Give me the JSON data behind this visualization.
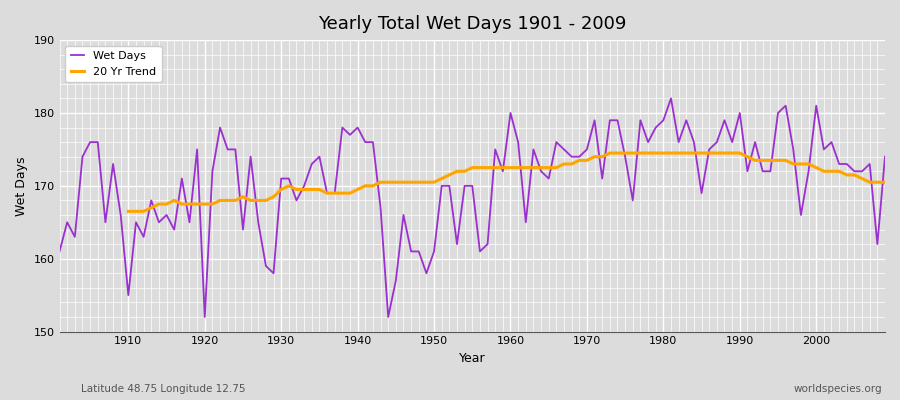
{
  "title": "Yearly Total Wet Days 1901 - 2009",
  "xlabel": "Year",
  "ylabel": "Wet Days",
  "subtitle_left": "Latitude 48.75 Longitude 12.75",
  "subtitle_right": "worldspecies.org",
  "ylim": [
    150,
    190
  ],
  "yticks": [
    150,
    160,
    170,
    180,
    190
  ],
  "xlim": [
    1901,
    2009
  ],
  "wet_days_color": "#9b30d0",
  "trend_color": "#ffa500",
  "bg_color": "#dcdcdc",
  "plot_bg_color": "#dcdcdc",
  "legend_wet": "Wet Days",
  "legend_trend": "20 Yr Trend",
  "years": [
    1901,
    1902,
    1903,
    1904,
    1905,
    1906,
    1907,
    1908,
    1909,
    1910,
    1911,
    1912,
    1913,
    1914,
    1915,
    1916,
    1917,
    1918,
    1919,
    1920,
    1921,
    1922,
    1923,
    1924,
    1925,
    1926,
    1927,
    1928,
    1929,
    1930,
    1931,
    1932,
    1933,
    1934,
    1935,
    1936,
    1937,
    1938,
    1939,
    1940,
    1941,
    1942,
    1943,
    1944,
    1945,
    1946,
    1947,
    1948,
    1949,
    1950,
    1951,
    1952,
    1953,
    1954,
    1955,
    1956,
    1957,
    1958,
    1959,
    1960,
    1961,
    1962,
    1963,
    1964,
    1965,
    1966,
    1967,
    1968,
    1969,
    1970,
    1971,
    1972,
    1973,
    1974,
    1975,
    1976,
    1977,
    1978,
    1979,
    1980,
    1981,
    1982,
    1983,
    1984,
    1985,
    1986,
    1987,
    1988,
    1989,
    1990,
    1991,
    1992,
    1993,
    1994,
    1995,
    1996,
    1997,
    1998,
    1999,
    2000,
    2001,
    2002,
    2003,
    2004,
    2005,
    2006,
    2007,
    2008,
    2009
  ],
  "wet_days": [
    161,
    165,
    163,
    174,
    176,
    176,
    165,
    173,
    166,
    155,
    165,
    163,
    168,
    165,
    166,
    164,
    171,
    165,
    175,
    152,
    172,
    178,
    175,
    175,
    164,
    174,
    165,
    159,
    158,
    171,
    171,
    168,
    170,
    173,
    174,
    169,
    169,
    178,
    177,
    178,
    176,
    176,
    167,
    152,
    157,
    166,
    161,
    161,
    158,
    161,
    170,
    170,
    162,
    170,
    170,
    161,
    162,
    175,
    172,
    180,
    176,
    165,
    175,
    172,
    171,
    176,
    175,
    174,
    174,
    175,
    179,
    171,
    179,
    179,
    174,
    168,
    179,
    176,
    178,
    179,
    182,
    176,
    179,
    176,
    169,
    175,
    176,
    179,
    176,
    180,
    172,
    176,
    172,
    172,
    180,
    181,
    175,
    166,
    172,
    181,
    175,
    176,
    173,
    173,
    172,
    172,
    173,
    162,
    174
  ],
  "trend_years": [
    1910,
    1911,
    1912,
    1913,
    1914,
    1915,
    1916,
    1917,
    1918,
    1919,
    1920,
    1921,
    1922,
    1923,
    1924,
    1925,
    1926,
    1927,
    1928,
    1929,
    1930,
    1931,
    1932,
    1933,
    1934,
    1935,
    1936,
    1937,
    1938,
    1939,
    1940,
    1941,
    1942,
    1943,
    1944,
    1945,
    1946,
    1947,
    1948,
    1949,
    1950,
    1951,
    1952,
    1953,
    1954,
    1955,
    1956,
    1957,
    1958,
    1959,
    1960,
    1961,
    1962,
    1963,
    1964,
    1965,
    1966,
    1967,
    1968,
    1969,
    1970,
    1971,
    1972,
    1973,
    1974,
    1975,
    1976,
    1977,
    1978,
    1979,
    1980,
    1981,
    1982,
    1983,
    1984,
    1985,
    1986,
    1987,
    1988,
    1989,
    1990,
    1991,
    1992,
    1993,
    1994,
    1995,
    1996,
    1997,
    1998,
    1999,
    2000,
    2001,
    2002,
    2003,
    2004,
    2005,
    2006,
    2007,
    2008,
    2009
  ],
  "trend_values": [
    166.5,
    166.5,
    166.5,
    167.0,
    167.5,
    167.5,
    168.0,
    167.5,
    167.5,
    167.5,
    167.5,
    167.5,
    168.0,
    168.0,
    168.0,
    168.5,
    168.0,
    168.0,
    168.0,
    168.5,
    169.5,
    170.0,
    169.5,
    169.5,
    169.5,
    169.5,
    169.0,
    169.0,
    169.0,
    169.0,
    169.5,
    170.0,
    170.0,
    170.5,
    170.5,
    170.5,
    170.5,
    170.5,
    170.5,
    170.5,
    170.5,
    171.0,
    171.5,
    172.0,
    172.0,
    172.5,
    172.5,
    172.5,
    172.5,
    172.5,
    172.5,
    172.5,
    172.5,
    172.5,
    172.5,
    172.5,
    172.5,
    173.0,
    173.0,
    173.5,
    173.5,
    174.0,
    174.0,
    174.5,
    174.5,
    174.5,
    174.5,
    174.5,
    174.5,
    174.5,
    174.5,
    174.5,
    174.5,
    174.5,
    174.5,
    174.5,
    174.5,
    174.5,
    174.5,
    174.5,
    174.5,
    174.0,
    173.5,
    173.5,
    173.5,
    173.5,
    173.5,
    173.0,
    173.0,
    173.0,
    172.5,
    172.0,
    172.0,
    172.0,
    171.5,
    171.5,
    171.0,
    170.5,
    170.5,
    170.5
  ]
}
